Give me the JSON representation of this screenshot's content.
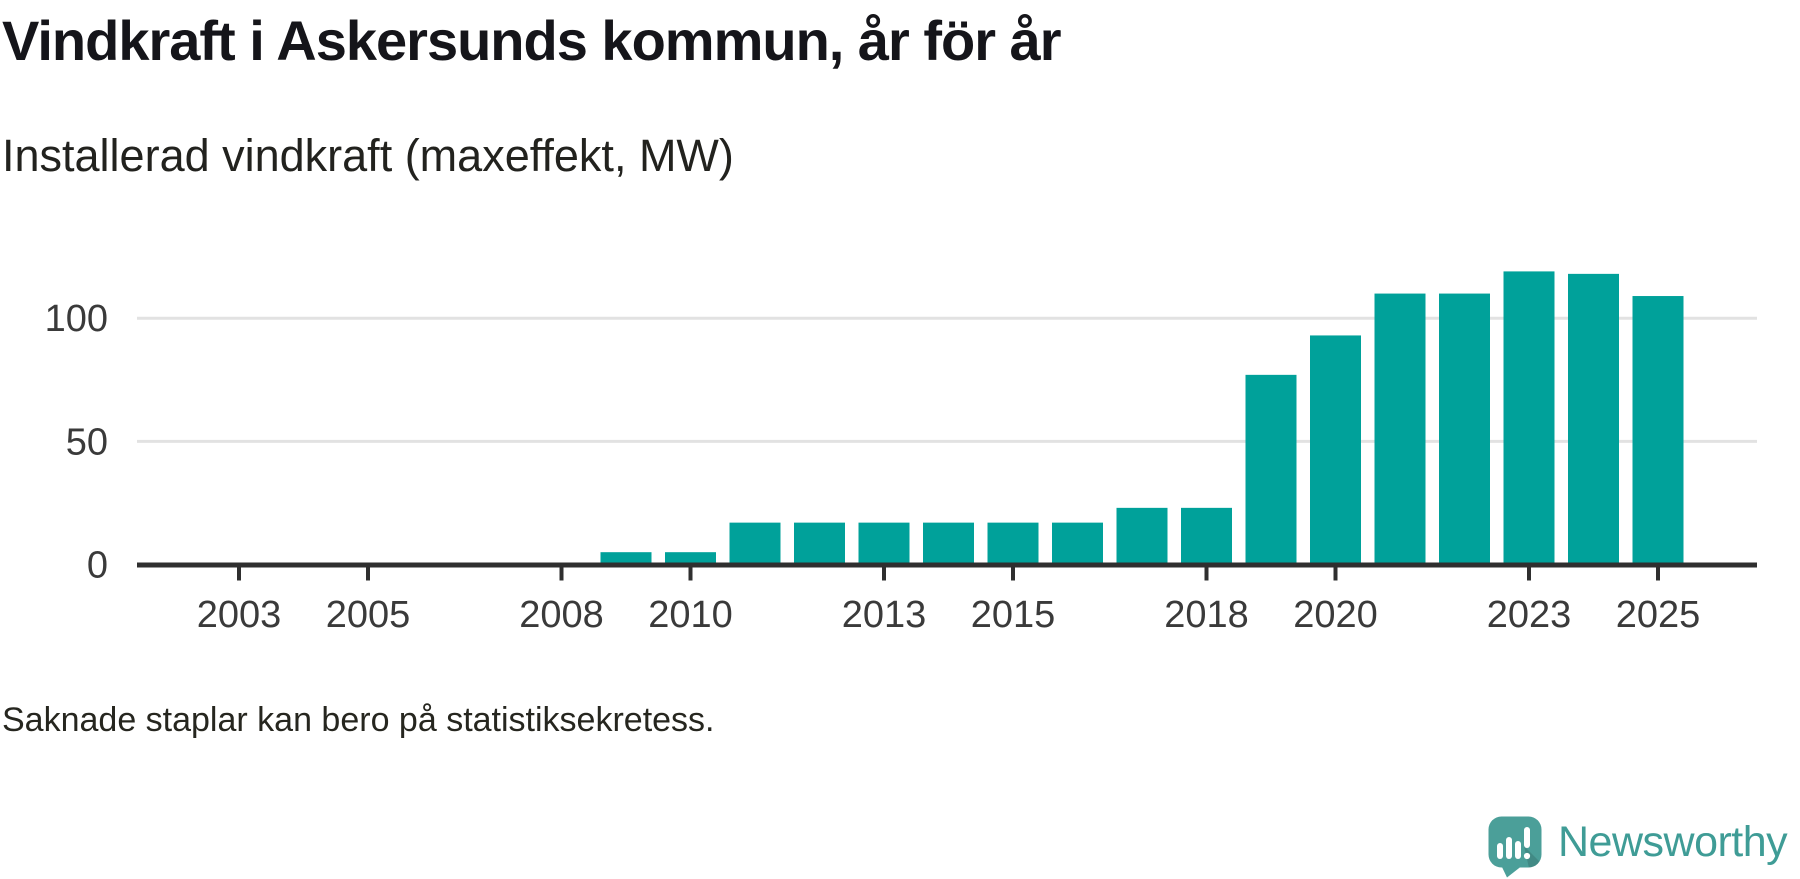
{
  "page": {
    "background": "#ffffff"
  },
  "colors": {
    "bar": "#00a19a",
    "axis": "#2f2f2f",
    "grid": "#e2e2e2",
    "tick_label": "#3a3a3a",
    "title_text": "#15151a",
    "body_text": "#22221e"
  },
  "chart_data": {
    "type": "bar",
    "title": "Vindkraft i Askersunds kommun, år för år",
    "subtitle": "Installerad vindkraft (maxeffekt, MW)",
    "note": "Saknade staplar kan bero på statistiksekretess.",
    "unit": "MW",
    "categories": [
      2002,
      2003,
      2004,
      2005,
      2006,
      2007,
      2008,
      2009,
      2010,
      2011,
      2012,
      2013,
      2014,
      2015,
      2016,
      2017,
      2018,
      2019,
      2020,
      2021,
      2022,
      2023,
      2024,
      2025
    ],
    "values": [
      null,
      null,
      null,
      null,
      null,
      null,
      null,
      5,
      5,
      17,
      17,
      17,
      17,
      17,
      17,
      23,
      23,
      77,
      93,
      110,
      110,
      119,
      118,
      109
    ],
    "x_tick_years": [
      2003,
      2005,
      2008,
      2010,
      2013,
      2015,
      2018,
      2020,
      2023,
      2025
    ],
    "y_ticks": [
      0,
      50,
      100
    ],
    "ylim": [
      0,
      132
    ],
    "grid": "horizontal",
    "legend": "none",
    "bar_color": "#00a19a",
    "missing_bars_meaning": "Saknade staplar kan bero på statistiksekretess."
  },
  "brand": {
    "name": "Newsworthy",
    "logo_icon": "newsworthy-speech-bubble-bar-chart-icon",
    "logo_color": "#4b9f99",
    "logo_shadow_opacity": "0.13",
    "wordmark_color": "#3f9c96"
  }
}
